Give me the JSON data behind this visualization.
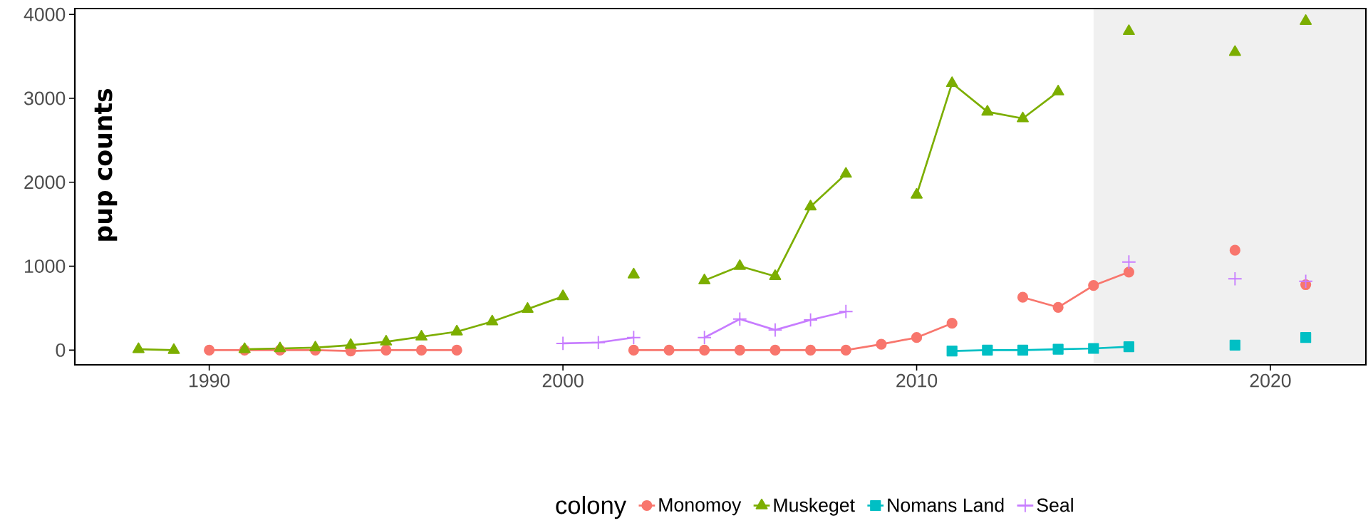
{
  "chart_data": {
    "type": "line",
    "ylabel": "pup counts",
    "legend_title": "colony",
    "legend": "bottom",
    "grid": false,
    "xlim": [
      1986.2,
      2022.7
    ],
    "xticks": [
      1990,
      2000,
      2010,
      2020
    ],
    "ylim": [
      -175,
      4070
    ],
    "yticks": [
      0,
      1000,
      2000,
      3000,
      4000
    ],
    "bands": [
      {
        "axis": "x",
        "from": 2015,
        "to": 2022.7,
        "color": "#f0f0f0"
      }
    ],
    "series": [
      {
        "name": "Monomoy",
        "color": "#f8766d",
        "marker": "circle",
        "x": [
          1990,
          1991,
          1992,
          1993,
          1994,
          1995,
          1996,
          1997,
          1998,
          2002,
          2003,
          2004,
          2005,
          2006,
          2007,
          2008,
          2009,
          2010,
          2011,
          2012,
          2013,
          2014,
          2015,
          2016,
          2017,
          2019,
          2020,
          2021
        ],
        "values": [
          0,
          0,
          0,
          0,
          -10,
          0,
          0,
          0,
          null,
          0,
          0,
          0,
          0,
          0,
          0,
          0,
          70,
          150,
          320,
          null,
          630,
          510,
          770,
          930,
          null,
          1190,
          null,
          780
        ]
      },
      {
        "name": "Muskeget",
        "color": "#7cae00",
        "marker": "triangle",
        "x": [
          1988,
          1989,
          1990,
          1991,
          1992,
          1993,
          1994,
          1995,
          1996,
          1997,
          1998,
          1999,
          2000,
          2001,
          2002,
          2003,
          2004,
          2005,
          2006,
          2007,
          2008,
          2009,
          2010,
          2011,
          2012,
          2013,
          2014,
          2015,
          2016,
          2017,
          2019,
          2020,
          2021
        ],
        "values": [
          10,
          0,
          null,
          10,
          20,
          30,
          60,
          100,
          160,
          220,
          340,
          490,
          640,
          null,
          900,
          null,
          830,
          1000,
          880,
          1710,
          2100,
          null,
          1850,
          3180,
          2840,
          2760,
          3080,
          null,
          3800,
          null,
          3550,
          null,
          3920
        ]
      },
      {
        "name": "Nomans Land",
        "color": "#00bfc4",
        "marker": "square",
        "x": [
          2011,
          2012,
          2013,
          2014,
          2015,
          2016,
          2017,
          2019,
          2020,
          2021
        ],
        "values": [
          -10,
          0,
          0,
          10,
          20,
          40,
          null,
          60,
          null,
          150
        ]
      },
      {
        "name": "Seal",
        "color": "#c77cff",
        "marker": "cross",
        "x": [
          2000,
          2001,
          2002,
          2003,
          2004,
          2005,
          2006,
          2007,
          2008,
          2009,
          2016,
          2017,
          2019,
          2020,
          2021
        ],
        "values": [
          80,
          90,
          150,
          null,
          150,
          370,
          240,
          360,
          460,
          null,
          1050,
          null,
          850,
          null,
          820
        ]
      }
    ]
  }
}
